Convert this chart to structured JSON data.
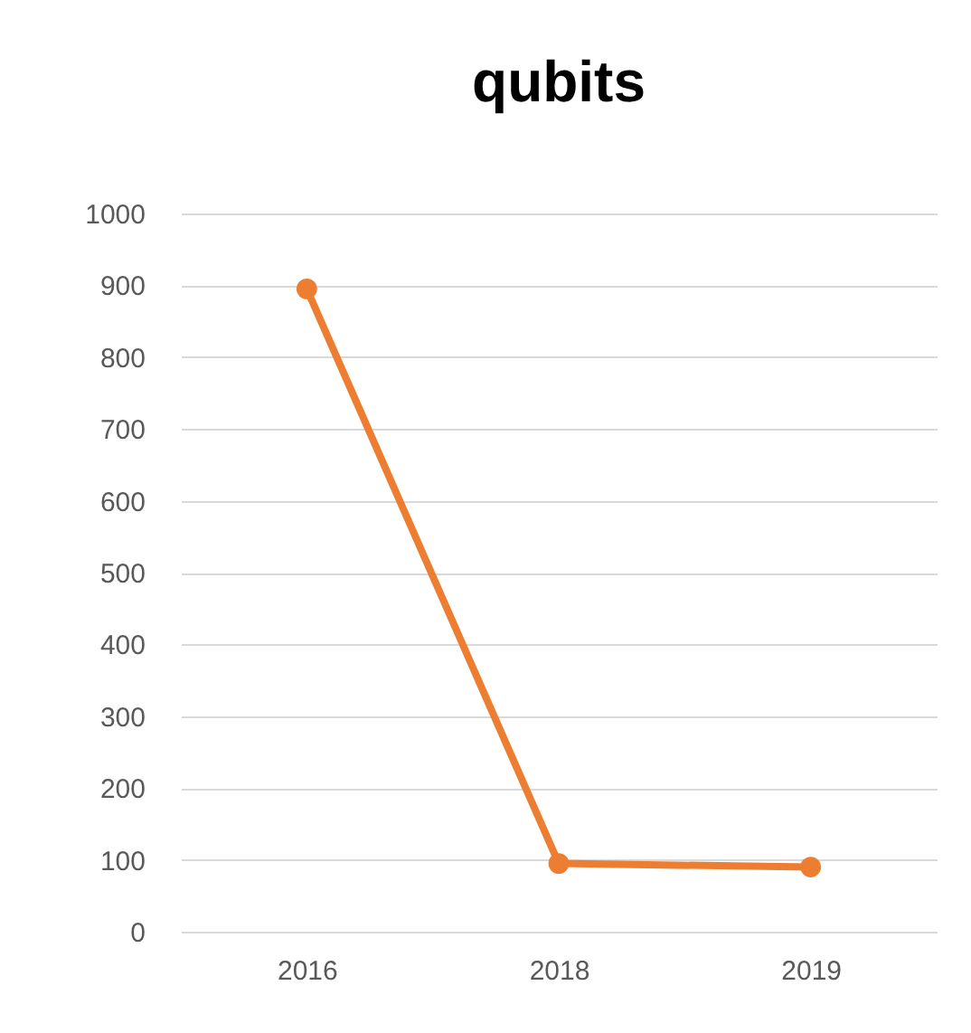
{
  "chart_data": {
    "type": "line",
    "title": "qubits",
    "categories": [
      "2016",
      "2018",
      "2019"
    ],
    "series": [
      {
        "color": "#ed7d31",
        "values": [
          895,
          95,
          90
        ]
      }
    ],
    "ylim": [
      0,
      1000
    ],
    "yticks": [
      0,
      100,
      200,
      300,
      400,
      500,
      600,
      700,
      800,
      900,
      1000
    ],
    "grid": "y",
    "marker": "circle"
  }
}
